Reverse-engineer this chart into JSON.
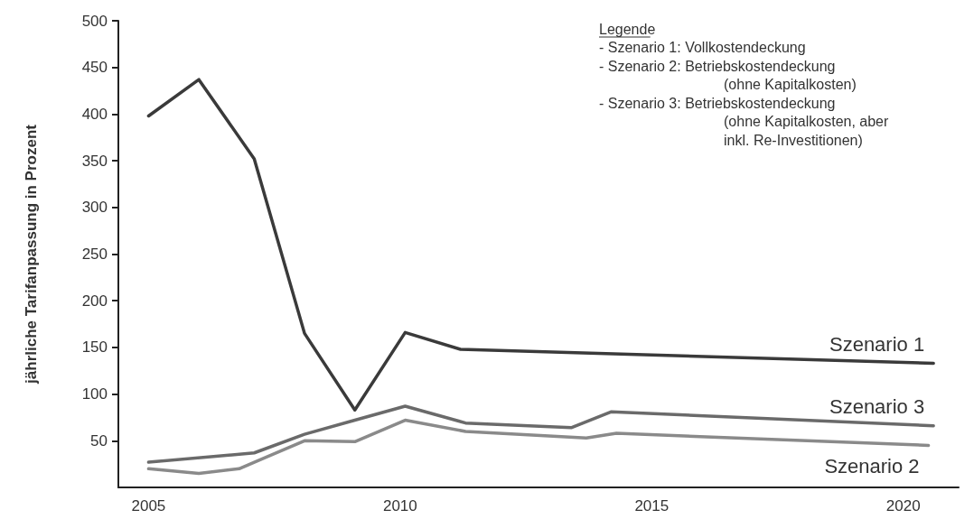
{
  "chart_data": {
    "type": "line",
    "ylabel": "jährliche Tarifanpassung in Prozent",
    "xlim": [
      2004.4,
      2021.1
    ],
    "xticks": [
      2005,
      2010,
      2015,
      2020
    ],
    "ylim": [
      0,
      500
    ],
    "yticks": [
      50,
      100,
      150,
      200,
      250,
      300,
      350,
      400,
      450,
      500
    ],
    "grid": false,
    "legend": false,
    "marker": "none",
    "line_style": "solid",
    "series": [
      {
        "name": "Szenario 1",
        "color": "#3a3a3a",
        "x": [
          2005,
          2006,
          2007.1,
          2008.1,
          2009.1,
          2010.1,
          2011.2,
          2020.6
        ],
        "values": [
          398,
          437,
          352,
          165,
          83,
          166,
          148,
          133
        ]
      },
      {
        "name": "Szenario 2",
        "color": "#8a8a8a",
        "x": [
          2005,
          2006,
          2006.8,
          2008.1,
          2009.1,
          2010.1,
          2011.3,
          2013.7,
          2014.3,
          2020.5
        ],
        "values": [
          20,
          15,
          20,
          50,
          49,
          72,
          60,
          53,
          58,
          45
        ]
      },
      {
        "name": "Szenario 3",
        "color": "#6a6a6a",
        "x": [
          2005,
          2007.1,
          2008.1,
          2009.1,
          2010.1,
          2011.3,
          2013.4,
          2014.2,
          2020.6
        ],
        "values": [
          27,
          37,
          57,
          72,
          87,
          69,
          64,
          81,
          66
        ]
      }
    ],
    "annotations": [
      "Legende",
      "- Szenario 1: Vollkostendeckung",
      "- Szenario 2: Betriebskostendeckung\n(ohne Kapitalkosten)",
      "- Szenario 3: Betriebskostendeckung\n(ohne Kapitalkosten, aber\ninkl. Re-Investitionen)"
    ]
  }
}
